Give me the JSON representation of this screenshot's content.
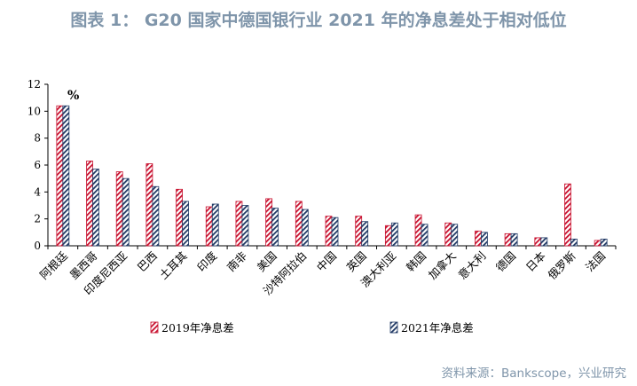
{
  "title": "图表 1：  G20 国家中德国银行业 2021 年的净息差处于相对低位",
  "source": "资料来源：Bankscope，兴业研究",
  "colors": {
    "series_2019": "#c8102e",
    "series_2021": "#1f3864",
    "title": "#7f95aa"
  },
  "chart_data": {
    "type": "bar",
    "title": "图表 1：  G20 国家中德国银行业 2021 年的净息差处于相对低位",
    "xlabel": "",
    "ylabel": "%",
    "ylim": [
      0,
      12
    ],
    "yticks": [
      0,
      2,
      4,
      6,
      8,
      10,
      12
    ],
    "grid": false,
    "legend_position": "bottom",
    "categories": [
      "阿根廷",
      "墨西哥",
      "印度尼西亚",
      "巴西",
      "土耳其",
      "印度",
      "南非",
      "美国",
      "沙特阿拉伯",
      "中国",
      "英国",
      "澳大利亚",
      "韩国",
      "加拿大",
      "意大利",
      "德国",
      "日本",
      "俄罗斯",
      "法国"
    ],
    "series": [
      {
        "name": "2019年净息差",
        "values": [
          10.4,
          6.3,
          5.5,
          6.1,
          4.2,
          2.9,
          3.3,
          3.5,
          3.3,
          2.2,
          2.2,
          1.5,
          2.3,
          1.7,
          1.1,
          0.9,
          0.6,
          4.6,
          0.4
        ]
      },
      {
        "name": "2021年净息差",
        "values": [
          10.4,
          5.7,
          5.0,
          4.4,
          3.3,
          3.1,
          3.0,
          2.8,
          2.7,
          2.1,
          1.8,
          1.7,
          1.6,
          1.6,
          1.0,
          0.9,
          0.6,
          0.5,
          0.5
        ]
      }
    ]
  }
}
